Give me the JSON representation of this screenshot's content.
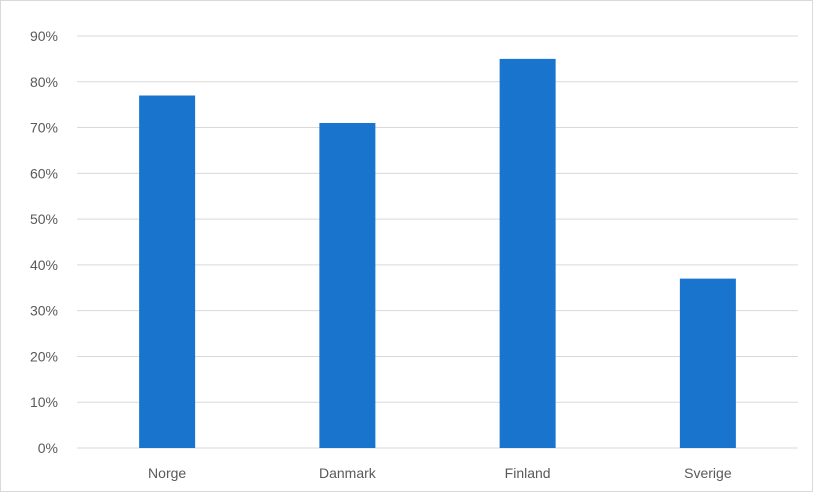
{
  "chart_data": {
    "type": "bar",
    "categories": [
      "Norge",
      "Danmark",
      "Finland",
      "Sverige"
    ],
    "values": [
      0.77,
      0.71,
      0.85,
      0.37
    ],
    "ylim": [
      0,
      0.9
    ],
    "yticks": [
      "0%",
      "10%",
      "20%",
      "30%",
      "40%",
      "50%",
      "60%",
      "70%",
      "80%",
      "90%"
    ],
    "grid": true,
    "legend": "none",
    "bar_color": "#1874CD"
  }
}
